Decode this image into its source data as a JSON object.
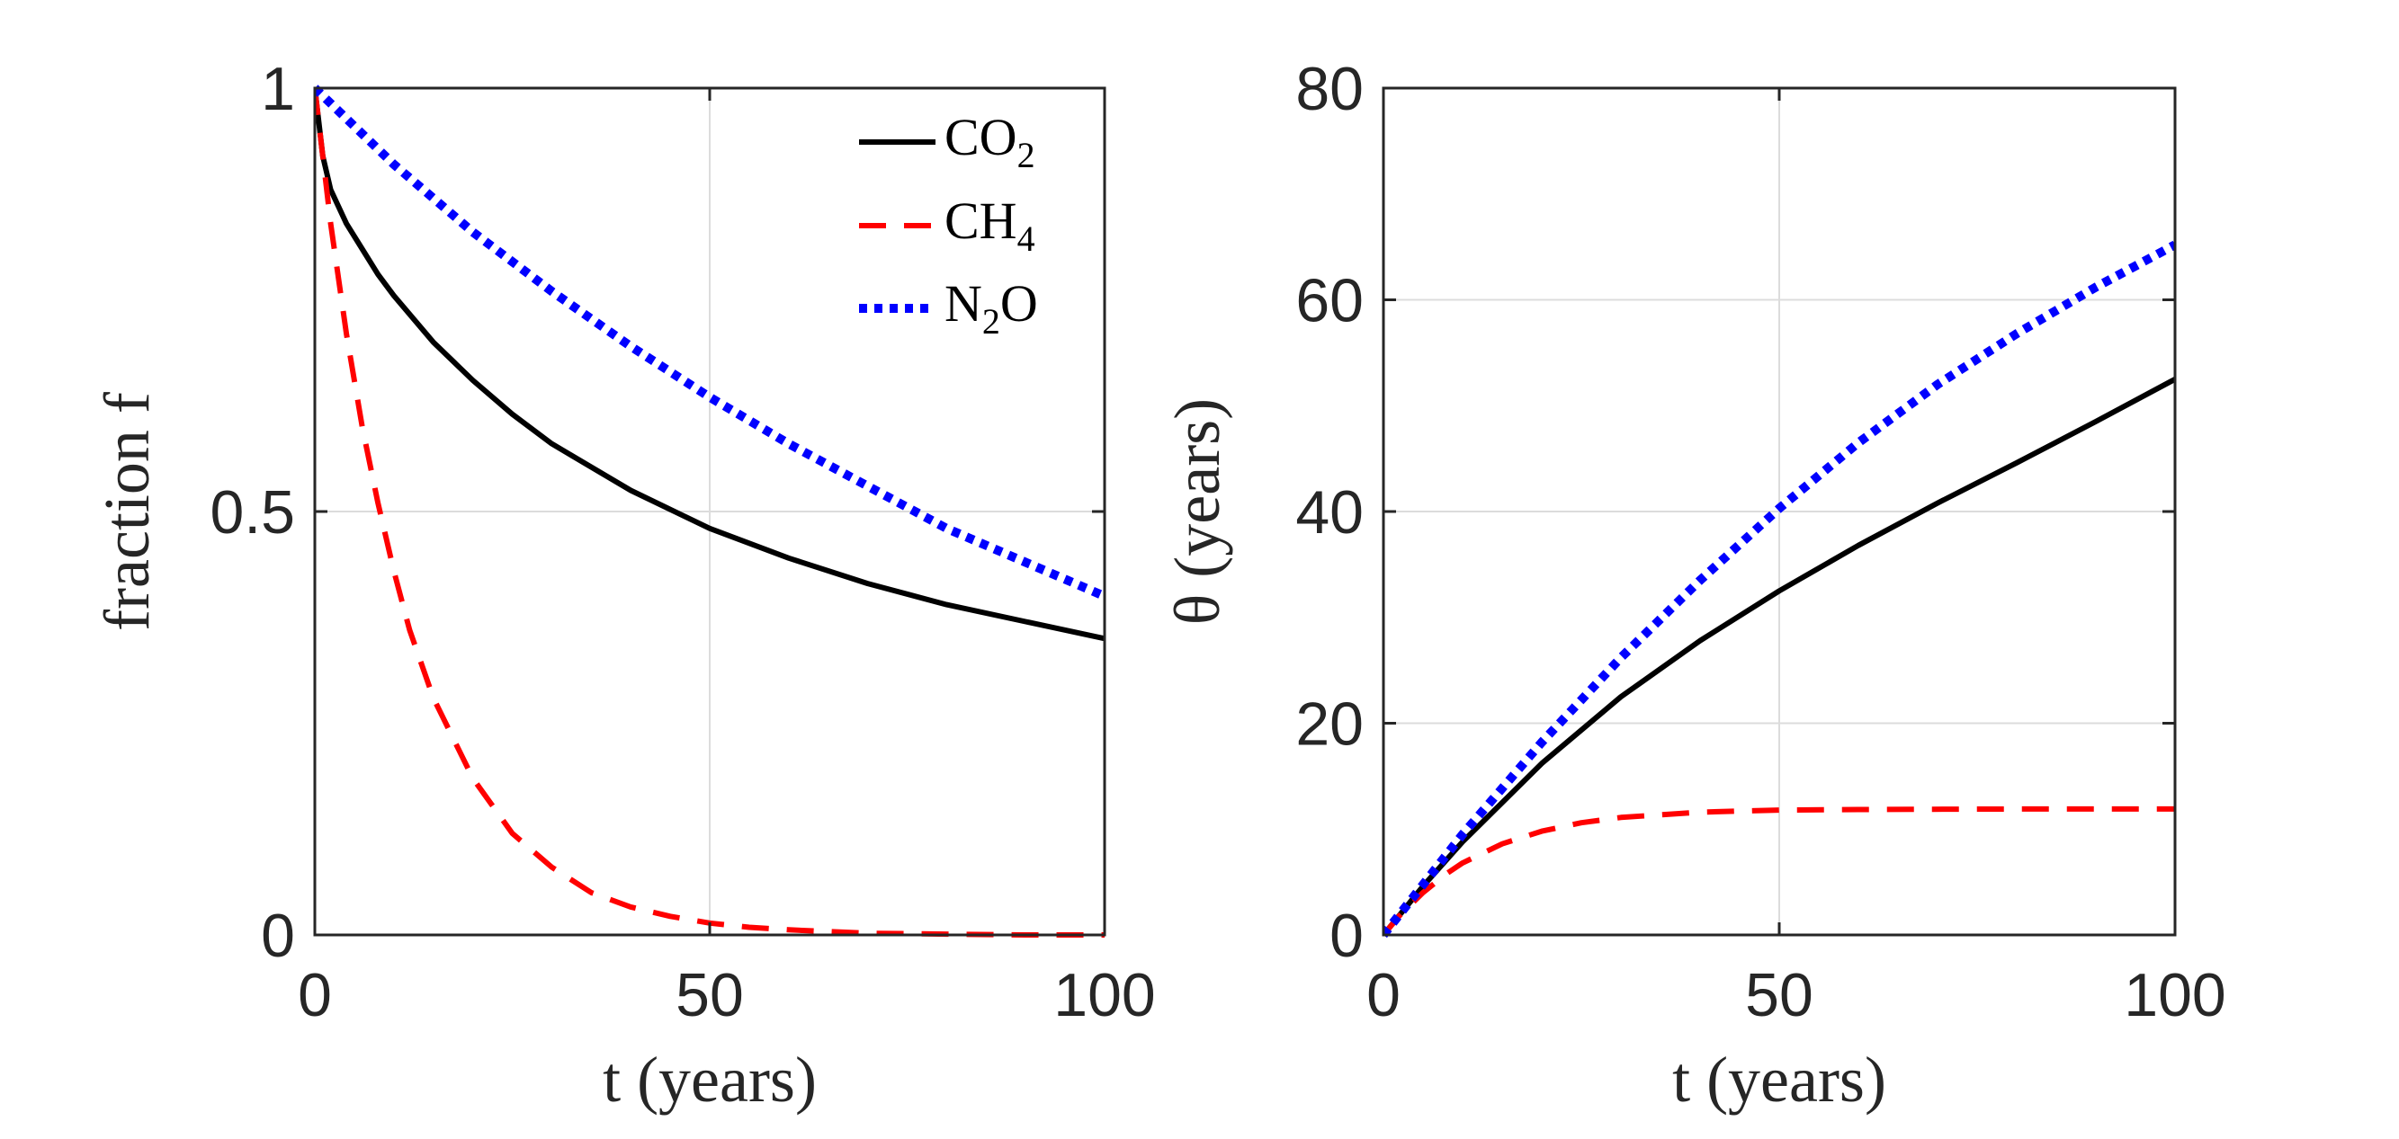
{
  "chart_data": [
    {
      "type": "line",
      "xlabel": "t (years)",
      "ylabel": "fraction f",
      "xlim": [
        0,
        100
      ],
      "ylim": [
        0,
        1
      ],
      "xticks": [
        "0",
        "50",
        "100"
      ],
      "yticks": [
        "0",
        "0.5",
        "1"
      ],
      "grid": true,
      "legend": "top-right",
      "series": [
        {
          "name": "CO2",
          "legend_base": "CO",
          "legend_sub": "2",
          "style": "solid",
          "color": "#000000",
          "x": [
            0,
            1,
            2,
            4,
            6,
            8,
            10,
            15,
            20,
            25,
            30,
            40,
            50,
            60,
            70,
            80,
            90,
            100
          ],
          "y": [
            1.0,
            0.92,
            0.88,
            0.84,
            0.81,
            0.78,
            0.755,
            0.7,
            0.655,
            0.615,
            0.58,
            0.525,
            0.48,
            0.445,
            0.415,
            0.39,
            0.37,
            0.35
          ]
        },
        {
          "name": "CH4",
          "legend_base": "CH",
          "legend_sub": "4",
          "style": "dashed",
          "color": "#ff0000",
          "x": [
            0,
            2,
            4,
            6,
            8,
            10,
            12,
            15,
            20,
            25,
            30,
            35,
            40,
            45,
            50,
            55,
            60,
            70,
            80,
            90,
            100
          ],
          "y": [
            1.0,
            0.84,
            0.71,
            0.6,
            0.51,
            0.43,
            0.36,
            0.28,
            0.185,
            0.12,
            0.08,
            0.05,
            0.033,
            0.022,
            0.014,
            0.009,
            0.006,
            0.002,
            0.001,
            0.0,
            0.0
          ]
        },
        {
          "name": "N2O",
          "legend_base": "N",
          "legend_sub": "2",
          "legend_tail": "O",
          "style": "dotted",
          "color": "#0000ff",
          "x": [
            0,
            10,
            20,
            30,
            40,
            50,
            60,
            70,
            80,
            90,
            100
          ],
          "y": [
            1.0,
            0.91,
            0.83,
            0.76,
            0.695,
            0.635,
            0.58,
            0.53,
            0.48,
            0.44,
            0.4
          ]
        }
      ]
    },
    {
      "type": "line",
      "xlabel": "t (years)",
      "ylabel": "θ (years)",
      "xlim": [
        0,
        100
      ],
      "ylim": [
        0,
        80
      ],
      "xticks": [
        "0",
        "50",
        "100"
      ],
      "yticks": [
        "0",
        "20",
        "40",
        "60",
        "80"
      ],
      "grid": true,
      "series": [
        {
          "style": "solid",
          "color": "#000000",
          "x": [
            0,
            5,
            10,
            20,
            30,
            40,
            50,
            60,
            70,
            80,
            90,
            100
          ],
          "y": [
            0,
            4.6,
            8.8,
            16.2,
            22.5,
            27.8,
            32.5,
            36.8,
            40.8,
            44.6,
            48.5,
            52.5
          ]
        },
        {
          "style": "dashed",
          "color": "#ff0000",
          "x": [
            0,
            2,
            5,
            8,
            10,
            15,
            20,
            25,
            30,
            40,
            50,
            60,
            80,
            100
          ],
          "y": [
            0,
            1.8,
            4.0,
            5.8,
            6.8,
            8.6,
            9.8,
            10.6,
            11.1,
            11.6,
            11.8,
            11.85,
            11.9,
            11.9
          ]
        },
        {
          "style": "dotted",
          "color": "#0000ff",
          "x": [
            0,
            10,
            20,
            30,
            40,
            50,
            60,
            70,
            80,
            90,
            100
          ],
          "y": [
            0,
            9.5,
            18.2,
            26.2,
            33.5,
            40.3,
            46.5,
            52.0,
            56.8,
            61.2,
            65.2
          ]
        }
      ]
    }
  ]
}
